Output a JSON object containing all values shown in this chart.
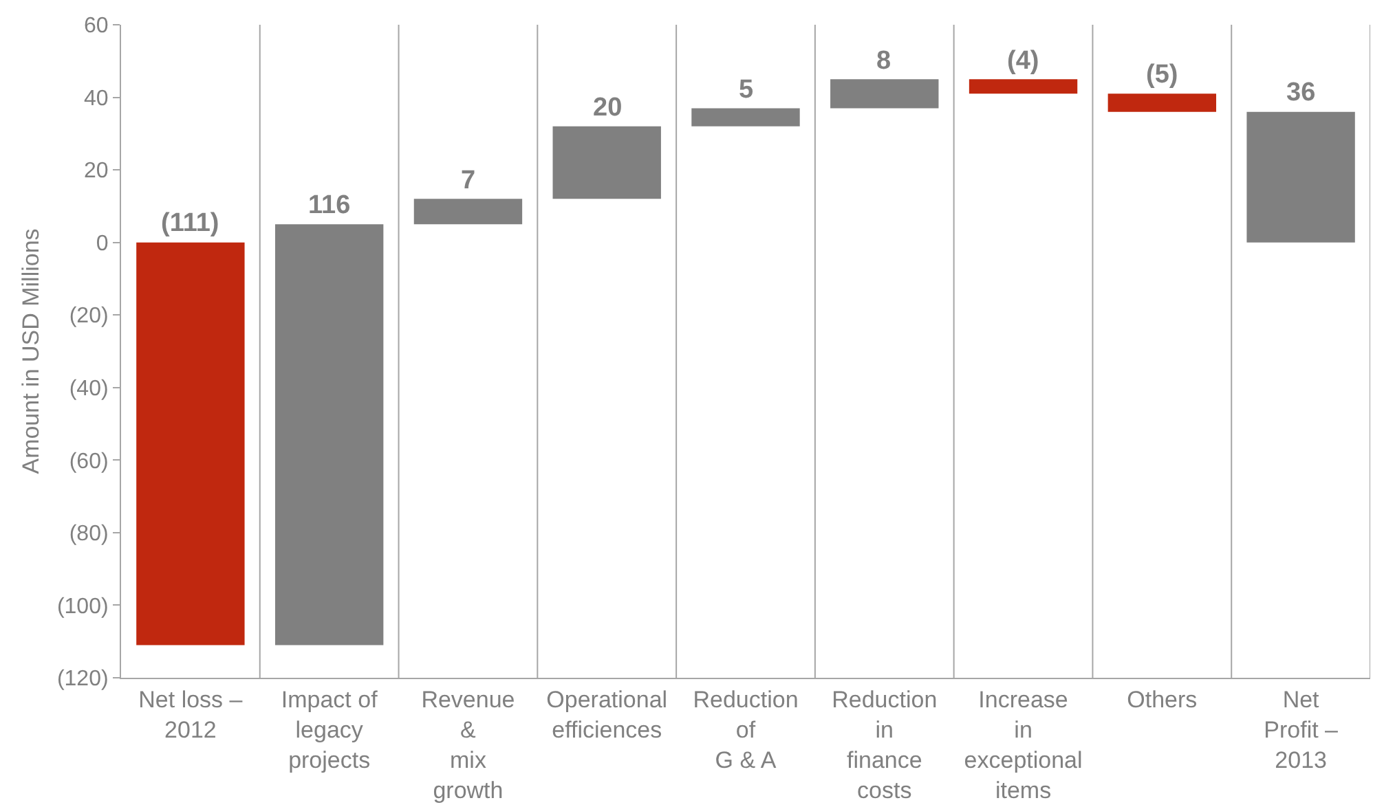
{
  "chart_data": {
    "type": "bar",
    "ylabel": "Amount in USD Millions",
    "categories": [
      "Net loss –\n2012",
      "Impact of\nlegacy\nprojects",
      "Revenue\n&\nmix\ngrowth",
      "Operational\nefficiences",
      "Reduction\nof\nG & A",
      "Reduction\nin\nfinance\ncosts",
      "Increase\nin\nexceptional\nitems",
      "Others",
      "Net\nProfit –\n2013"
    ],
    "values": [
      -111,
      116,
      7,
      20,
      5,
      8,
      -4,
      -5,
      36
    ],
    "base": [
      0,
      -111,
      5,
      12,
      32,
      37,
      45,
      41,
      0
    ],
    "colors": [
      "#c0280f",
      "#808080",
      "#808080",
      "#808080",
      "#808080",
      "#808080",
      "#c0280f",
      "#c0280f",
      "#808080"
    ],
    "value_labels": [
      "(111)",
      "116",
      "7",
      "20",
      "5",
      "8",
      "(4)",
      "(5)",
      "36"
    ],
    "ylim": [
      -120,
      60
    ],
    "yticks": [
      {
        "value": -120,
        "label": "(120)"
      },
      {
        "value": -100,
        "label": "(100)"
      },
      {
        "value": -80,
        "label": "(80)"
      },
      {
        "value": -60,
        "label": "(60)"
      },
      {
        "value": -40,
        "label": "(40)"
      },
      {
        "value": -20,
        "label": "(20)"
      },
      0,
      20,
      40,
      60
    ],
    "grid": "x"
  }
}
